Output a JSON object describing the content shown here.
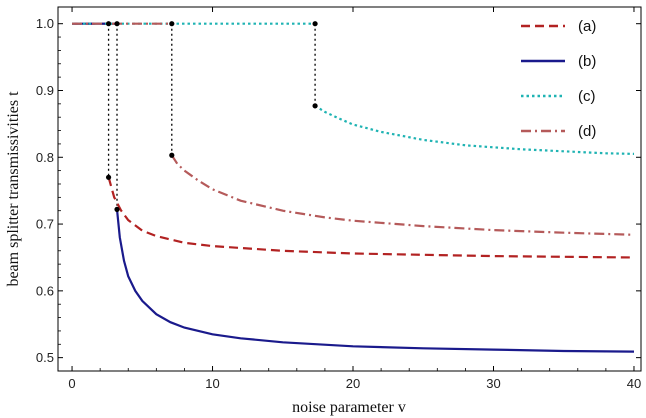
{
  "chart_data": {
    "type": "line",
    "title": "",
    "xlabel": "noise parameter v",
    "ylabel": "beam splitter transmissivities t",
    "xlim": [
      -1,
      40.5
    ],
    "ylim": [
      0.48,
      1.025
    ],
    "xticks": [
      0,
      10,
      20,
      30,
      40
    ],
    "yticks": [
      0.5,
      0.6,
      0.7,
      0.8,
      0.9,
      1.0
    ],
    "ytick_labels": [
      "0.5",
      "0.6",
      "0.7",
      "0.8",
      "0.9",
      "1.0"
    ],
    "grid": false,
    "legend_position": "top-right",
    "series": [
      {
        "name": "(a)",
        "color": "#b22222",
        "dash": "dashed",
        "flat": [
          [
            0,
            1.0
          ],
          [
            2.6,
            1.0
          ]
        ],
        "drop": [
          2.6,
          1.0,
          0.77
        ],
        "points": [
          [
            2.6,
            0.77
          ],
          [
            3.0,
            0.74
          ],
          [
            3.5,
            0.72
          ],
          [
            4.0,
            0.706
          ],
          [
            5,
            0.69
          ],
          [
            6,
            0.682
          ],
          [
            8,
            0.672
          ],
          [
            10,
            0.667
          ],
          [
            15,
            0.66
          ],
          [
            20,
            0.656
          ],
          [
            25,
            0.654
          ],
          [
            30,
            0.652
          ],
          [
            35,
            0.651
          ],
          [
            40,
            0.65
          ]
        ]
      },
      {
        "name": "(b)",
        "color": "#1a1a8c",
        "dash": "solid",
        "flat": [
          [
            0,
            1.0
          ],
          [
            3.2,
            1.0
          ]
        ],
        "drop": [
          3.2,
          1.0,
          0.722
        ],
        "points": [
          [
            3.2,
            0.722
          ],
          [
            3.4,
            0.68
          ],
          [
            3.7,
            0.645
          ],
          [
            4.0,
            0.622
          ],
          [
            4.5,
            0.6
          ],
          [
            5,
            0.585
          ],
          [
            6,
            0.565
          ],
          [
            7,
            0.553
          ],
          [
            8,
            0.545
          ],
          [
            10,
            0.535
          ],
          [
            12,
            0.529
          ],
          [
            15,
            0.523
          ],
          [
            20,
            0.517
          ],
          [
            25,
            0.514
          ],
          [
            30,
            0.512
          ],
          [
            35,
            0.51
          ],
          [
            40,
            0.509
          ]
        ]
      },
      {
        "name": "(c)",
        "color": "#1fb3b3",
        "dash": "dotted",
        "flat": [
          [
            0,
            1.0
          ],
          [
            17.3,
            1.0
          ]
        ],
        "drop": [
          17.3,
          1.0,
          0.877
        ],
        "points": [
          [
            17.3,
            0.877
          ],
          [
            18,
            0.868
          ],
          [
            19,
            0.858
          ],
          [
            20,
            0.849
          ],
          [
            22,
            0.838
          ],
          [
            25,
            0.826
          ],
          [
            28,
            0.818
          ],
          [
            30,
            0.815
          ],
          [
            32,
            0.812
          ],
          [
            35,
            0.809
          ],
          [
            38,
            0.806
          ],
          [
            40,
            0.805
          ]
        ]
      },
      {
        "name": "(d)",
        "color": "#b55a5a",
        "dash": "dashdot",
        "flat": [
          [
            0,
            1.0
          ],
          [
            7.1,
            1.0
          ]
        ],
        "drop": [
          7.1,
          1.0,
          0.803
        ],
        "points": [
          [
            7.1,
            0.803
          ],
          [
            7.5,
            0.79
          ],
          [
            8,
            0.78
          ],
          [
            9,
            0.765
          ],
          [
            10,
            0.752
          ],
          [
            12,
            0.735
          ],
          [
            15,
            0.72
          ],
          [
            18,
            0.71
          ],
          [
            20,
            0.705
          ],
          [
            25,
            0.697
          ],
          [
            30,
            0.691
          ],
          [
            35,
            0.687
          ],
          [
            40,
            0.684
          ]
        ]
      }
    ],
    "markers": [
      [
        2.6,
        1.0
      ],
      [
        2.6,
        0.77
      ],
      [
        3.2,
        1.0
      ],
      [
        3.2,
        0.722
      ],
      [
        7.1,
        1.0
      ],
      [
        7.1,
        0.803
      ],
      [
        17.3,
        1.0
      ],
      [
        17.3,
        0.877
      ]
    ]
  }
}
